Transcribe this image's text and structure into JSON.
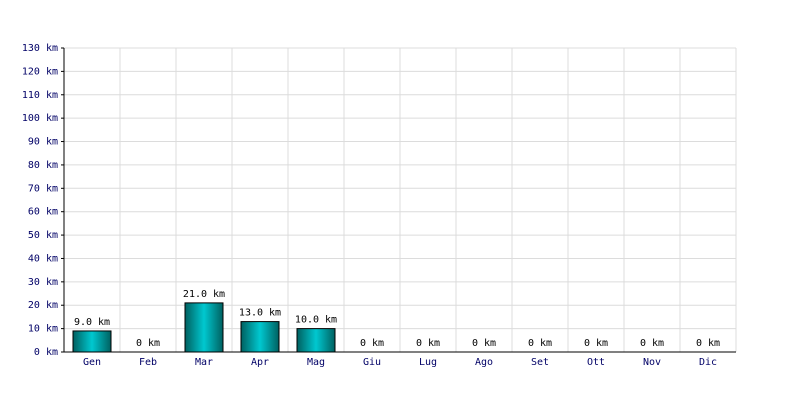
{
  "chart_data": {
    "type": "bar",
    "categories": [
      "Gen",
      "Feb",
      "Mar",
      "Apr",
      "Mag",
      "Giu",
      "Lug",
      "Ago",
      "Set",
      "Ott",
      "Nov",
      "Dic"
    ],
    "values": [
      9,
      0,
      21,
      13,
      10,
      0,
      0,
      0,
      0,
      0,
      0,
      0
    ],
    "value_labels": [
      "9.0 km",
      "0 km",
      "21.0 km",
      "13.0 km",
      "10.0 km",
      "0 km",
      "0 km",
      "0 km",
      "0 km",
      "0 km",
      "0 km",
      "0 km"
    ],
    "color": "#00c8d0",
    "ylim": [
      0,
      130
    ],
    "yticks": [
      {
        "value": 0,
        "label": "0 km"
      },
      {
        "value": 10,
        "label": "10 km"
      },
      {
        "value": 20,
        "label": "20 km"
      },
      {
        "value": 30,
        "label": "30 km"
      },
      {
        "value": 40,
        "label": "40 km"
      },
      {
        "value": 50,
        "label": "50 km"
      },
      {
        "value": 60,
        "label": "60 km"
      },
      {
        "value": 70,
        "label": "70 km"
      },
      {
        "value": 80,
        "label": "80 km"
      },
      {
        "value": 90,
        "label": "90 km"
      },
      {
        "value": 100,
        "label": "100 km"
      },
      {
        "value": 110,
        "label": "110 km"
      },
      {
        "value": 120,
        "label": "120 km"
      },
      {
        "value": 130,
        "label": "130 km"
      }
    ],
    "grid": true
  }
}
